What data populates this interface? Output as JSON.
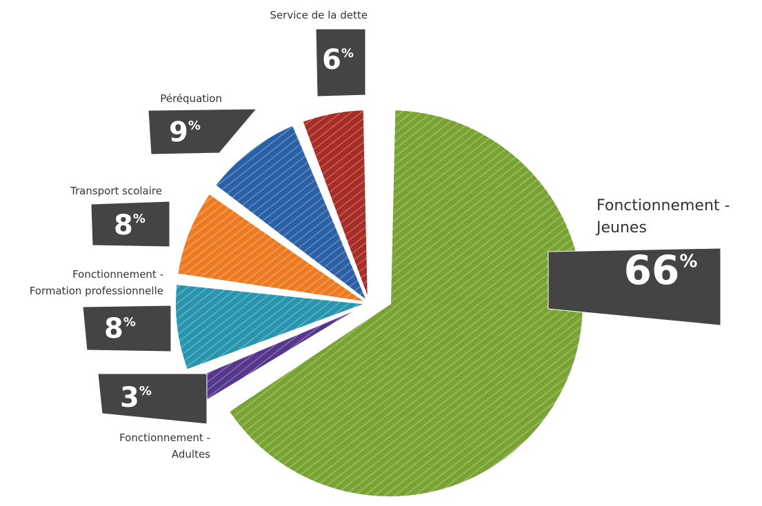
{
  "chart_data": {
    "type": "pie",
    "title": "",
    "categories": [
      "Fonctionnement - Jeunes",
      "Fonctionnement - Adultes",
      "Fonctionnement - Formation professionnelle",
      "Transport scolaire",
      "Péréquation",
      "Service de la dette"
    ],
    "values": [
      66,
      3,
      8,
      8,
      9,
      6
    ],
    "value_labels": [
      "66",
      "3",
      "8",
      "8",
      "9",
      "6"
    ],
    "unit": "%",
    "colors": [
      "#7aa534",
      "#57388f",
      "#2a97b0",
      "#ee7d23",
      "#2c62a8",
      "#aa2e27"
    ],
    "label_lines": [
      [
        "Fonctionnement -",
        "Jeunes"
      ],
      [
        "Fonctionnement -",
        "Adultes"
      ],
      [
        "Fonctionnement -",
        "Formation professionnelle"
      ],
      [
        "Transport scolaire"
      ],
      [
        "Péréquation"
      ],
      [
        "Service de la dette"
      ]
    ],
    "label_box_color": "#444444"
  }
}
